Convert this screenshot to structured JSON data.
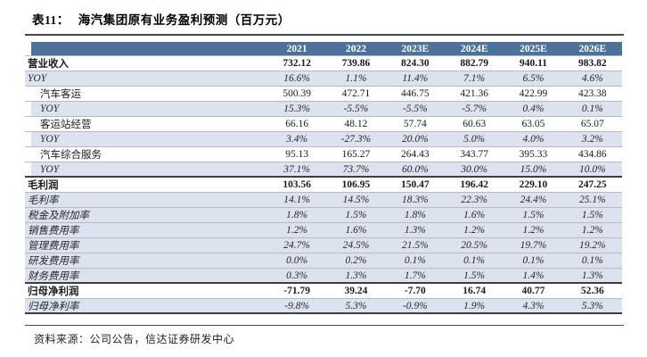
{
  "title": {
    "prefix": "表11：",
    "text": "海汽集团原有业务盈利预测（百万元）"
  },
  "source_note": "资料来源：公司公告，信达证券研发中心",
  "colors": {
    "header_bg": "#4d7299",
    "stripe_bg": "#dce2ee",
    "light_border": "#b4bbc7",
    "dark_border": "#3e3e3e",
    "header_text": "#ffffff"
  },
  "table": {
    "column_headers": [
      "2021",
      "2022",
      "2023E",
      "2024E",
      "2025E",
      "2026E"
    ],
    "rows": [
      {
        "label": "营业收入",
        "bold": true,
        "italic": false,
        "stripe": false,
        "stripeIndent": false,
        "indent": 0,
        "darkBottom": false,
        "values": [
          "732.12",
          "739.86",
          "824.30",
          "882.79",
          "940.11",
          "983.82"
        ]
      },
      {
        "label": "YOY",
        "bold": false,
        "italic": true,
        "stripe": true,
        "stripeIndent": false,
        "indent": 0,
        "darkBottom": false,
        "values": [
          "16.6%",
          "1.1%",
          "11.4%",
          "7.1%",
          "6.5%",
          "4.6%"
        ]
      },
      {
        "label": "汽车客运",
        "bold": false,
        "italic": false,
        "stripe": false,
        "stripeIndent": false,
        "indent": 1,
        "darkBottom": false,
        "values": [
          "500.39",
          "472.71",
          "446.75",
          "421.36",
          "422.99",
          "423.38"
        ]
      },
      {
        "label": "YOY",
        "bold": false,
        "italic": true,
        "stripe": true,
        "stripeIndent": true,
        "indent": 1,
        "darkBottom": false,
        "values": [
          "15.3%",
          "-5.5%",
          "-5.5%",
          "-5.7%",
          "0.4%",
          "0.1%"
        ]
      },
      {
        "label": "客运站经营",
        "bold": false,
        "italic": false,
        "stripe": false,
        "stripeIndent": false,
        "indent": 1,
        "darkBottom": false,
        "values": [
          "66.16",
          "48.12",
          "57.74",
          "60.63",
          "63.05",
          "65.07"
        ]
      },
      {
        "label": "YOY",
        "bold": false,
        "italic": true,
        "stripe": true,
        "stripeIndent": true,
        "indent": 1,
        "darkBottom": false,
        "values": [
          "3.4%",
          "-27.3%",
          "20.0%",
          "5.0%",
          "4.0%",
          "3.2%"
        ]
      },
      {
        "label": "汽车综合服务",
        "bold": false,
        "italic": false,
        "stripe": false,
        "stripeIndent": false,
        "indent": 1,
        "darkBottom": false,
        "values": [
          "95.13",
          "165.27",
          "264.43",
          "343.77",
          "395.33",
          "434.86"
        ]
      },
      {
        "label": "YOY",
        "bold": false,
        "italic": true,
        "stripe": true,
        "stripeIndent": true,
        "indent": 1,
        "darkBottom": true,
        "values": [
          "37.1%",
          "73.7%",
          "60.0%",
          "30.0%",
          "15.0%",
          "10.0%"
        ]
      },
      {
        "label": "毛利润",
        "bold": true,
        "italic": false,
        "stripe": false,
        "stripeIndent": false,
        "indent": 0,
        "darkBottom": false,
        "values": [
          "103.56",
          "106.95",
          "150.47",
          "196.42",
          "229.10",
          "247.25"
        ]
      },
      {
        "label": "毛利率",
        "bold": false,
        "italic": true,
        "stripe": true,
        "stripeIndent": false,
        "indent": 0,
        "darkBottom": false,
        "values": [
          "14.1%",
          "14.5%",
          "18.3%",
          "22.3%",
          "24.4%",
          "25.1%"
        ]
      },
      {
        "label": "税金及附加率",
        "bold": false,
        "italic": true,
        "stripe": true,
        "stripeIndent": false,
        "indent": 0,
        "darkBottom": false,
        "values": [
          "1.8%",
          "1.5%",
          "1.8%",
          "1.6%",
          "1.5%",
          "1.5%"
        ]
      },
      {
        "label": "销售费用率",
        "bold": false,
        "italic": true,
        "stripe": true,
        "stripeIndent": false,
        "indent": 0,
        "darkBottom": false,
        "values": [
          "1.2%",
          "1.6%",
          "1.3%",
          "1.2%",
          "1.2%",
          "1.2%"
        ]
      },
      {
        "label": "管理费用率",
        "bold": false,
        "italic": true,
        "stripe": true,
        "stripeIndent": false,
        "indent": 0,
        "darkBottom": false,
        "values": [
          "24.7%",
          "24.5%",
          "21.5%",
          "20.5%",
          "19.7%",
          "19.2%"
        ]
      },
      {
        "label": "研发费用率",
        "bold": false,
        "italic": true,
        "stripe": true,
        "stripeIndent": false,
        "indent": 0,
        "darkBottom": false,
        "values": [
          "0.0%",
          "0.2%",
          "0.1%",
          "0.1%",
          "0.1%",
          "0.1%"
        ]
      },
      {
        "label": "财务费用率",
        "bold": false,
        "italic": true,
        "stripe": true,
        "stripeIndent": false,
        "indent": 0,
        "darkBottom": true,
        "values": [
          "0.3%",
          "1.3%",
          "1.7%",
          "1.5%",
          "1.4%",
          "1.3%"
        ]
      },
      {
        "label": "归母净利润",
        "bold": true,
        "italic": false,
        "stripe": false,
        "stripeIndent": false,
        "indent": 0,
        "darkBottom": false,
        "values": [
          "-71.79",
          "39.24",
          "-7.70",
          "16.74",
          "40.77",
          "52.36"
        ]
      },
      {
        "label": "归母净利率",
        "bold": false,
        "italic": true,
        "stripe": true,
        "stripeIndent": false,
        "indent": 0,
        "darkBottom": true,
        "values": [
          "-9.8%",
          "5.3%",
          "-0.9%",
          "1.9%",
          "4.3%",
          "5.3%"
        ]
      }
    ]
  }
}
